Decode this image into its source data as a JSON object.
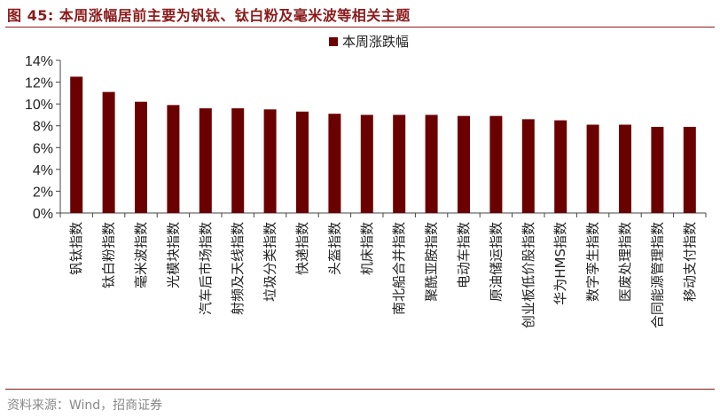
{
  "header": {
    "title": "图 45: 本周涨幅居前主要为钒钛、钛白粉及毫米波等相关主题"
  },
  "footer": {
    "source": "资料来源：Wind，招商证券"
  },
  "chart_data": {
    "type": "bar",
    "title": "",
    "xlabel": "",
    "ylabel": "",
    "ylim": [
      0,
      14
    ],
    "yticks": [
      "0%",
      "2%",
      "4%",
      "6%",
      "8%",
      "10%",
      "12%",
      "14%"
    ],
    "grid": false,
    "legend_position": "top-center",
    "bar_color": "#6B0000",
    "categories": [
      "钒钛指数",
      "钛白粉指数",
      "毫米波指数",
      "光模块指数",
      "汽车后市场指数",
      "射频及天线指数",
      "垃圾分类指数",
      "快递指数",
      "头盔指数",
      "机床指数",
      "南北船合并指数",
      "聚酰亚胺指数",
      "电动车指数",
      "原油储运指数",
      "创业板低价股指数",
      "华为HMS指数",
      "数字孪生指数",
      "医废处理指数",
      "合同能源管理指数",
      "移动支付指数"
    ],
    "series": [
      {
        "name": "本周涨跌幅",
        "values": [
          12.5,
          11.1,
          10.2,
          9.9,
          9.6,
          9.6,
          9.5,
          9.3,
          9.1,
          9.0,
          9.0,
          9.0,
          8.9,
          8.9,
          8.6,
          8.5,
          8.1,
          8.1,
          7.9,
          7.9
        ]
      }
    ]
  }
}
